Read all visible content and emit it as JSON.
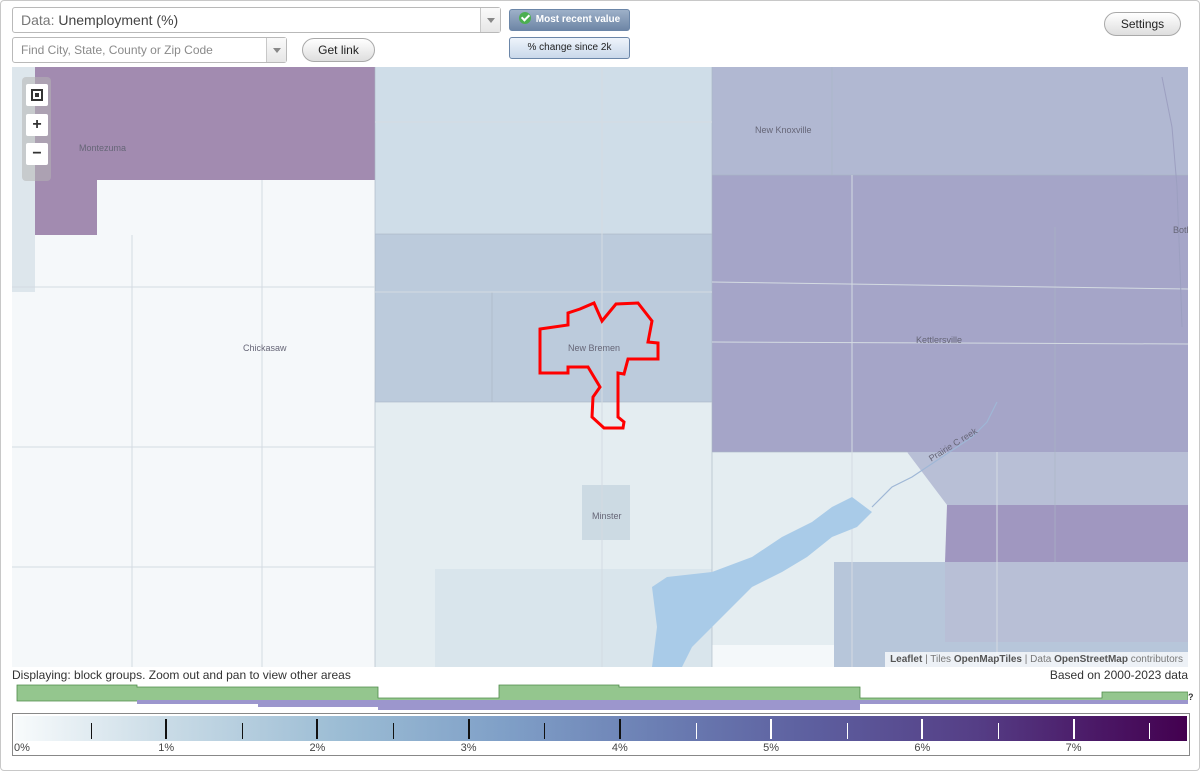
{
  "toolbar": {
    "data_prefix": "Data:",
    "data_value": "Unemployment (%)",
    "search_placeholder": "Find City, State, County or Zip Code",
    "get_link_label": "Get link",
    "most_recent_label": "Most recent value",
    "pct_change_label": "% change since 2k",
    "settings_label": "Settings"
  },
  "map": {
    "places": {
      "montezuma": "Montezuma",
      "new_knoxville": "New Knoxville",
      "botkins": "Botkin",
      "chickasaw": "Chickasaw",
      "new_bremen": "New Bremen",
      "kettlersville": "Kettlersville",
      "minster": "Minster",
      "creek": "Prairie C reek"
    },
    "attribution": {
      "leaflet": "Leaflet",
      "tiles_prefix": "Tiles",
      "tiles": "OpenMapTiles",
      "data_prefix": "Data",
      "data": "OpenStreetMap",
      "suffix": "contributors"
    },
    "colors": {
      "highlight_outline": "#ff0000",
      "water": "#a9cbe8"
    }
  },
  "legend": {
    "display_text": "Displaying: block groups. Zoom out and pan to view other areas",
    "based_text": "Based on 2000-2023 data",
    "unknown_mark": "?",
    "ticks": [
      "0%",
      "1%",
      "2%",
      "3%",
      "4%",
      "5%",
      "6%",
      "7%"
    ],
    "range": [
      0,
      7.75
    ]
  }
}
